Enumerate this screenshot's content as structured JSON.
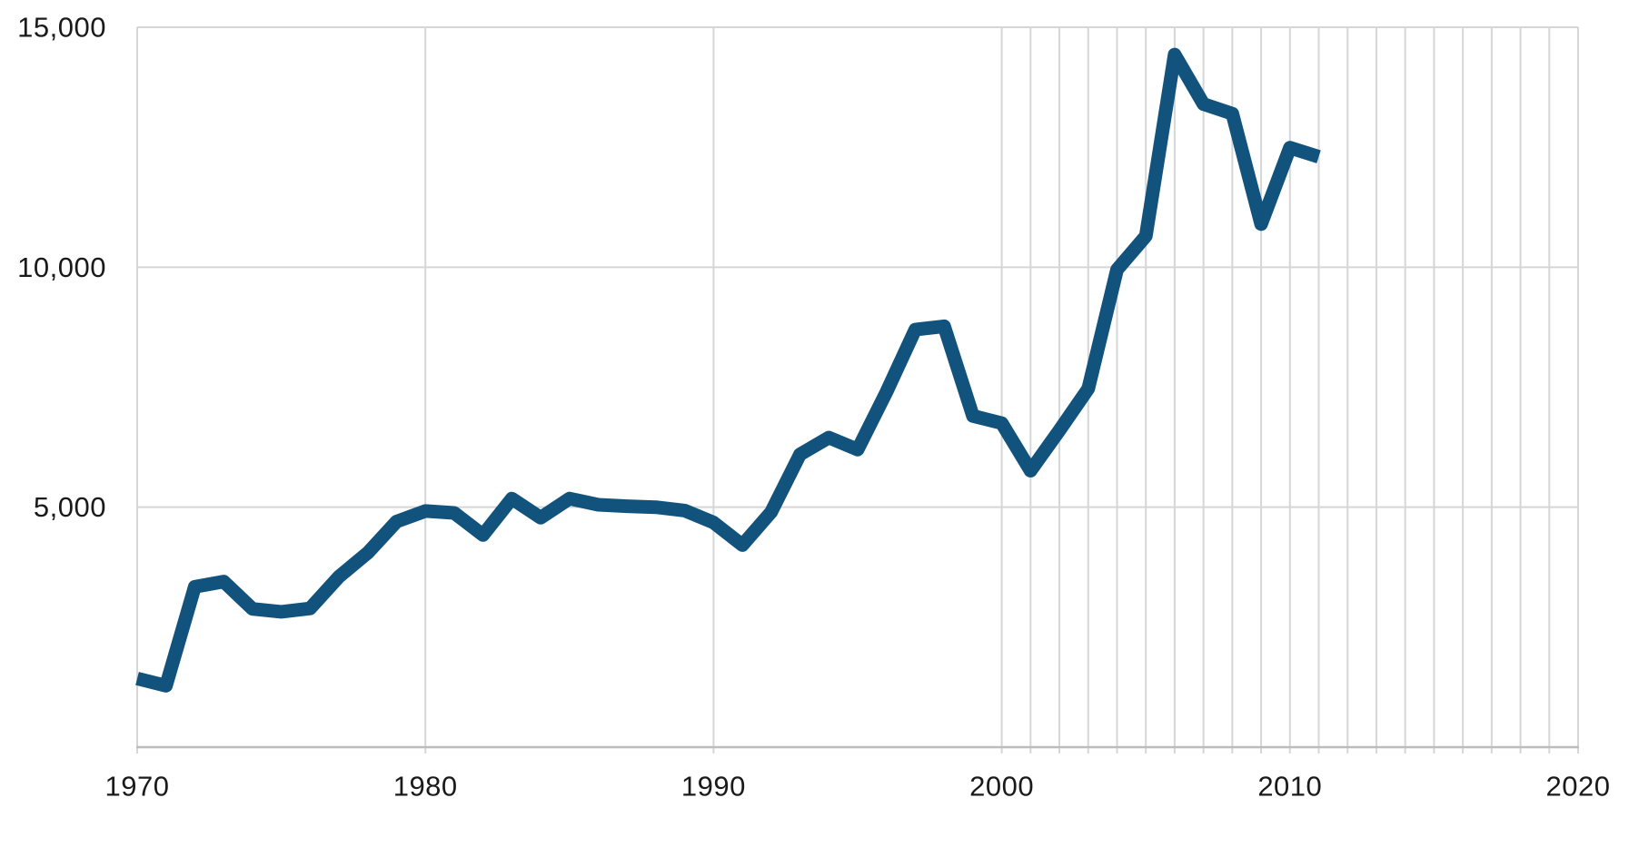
{
  "chart_data": {
    "type": "line",
    "title": "",
    "xlabel": "",
    "ylabel": "",
    "x": [
      1970,
      1971,
      1972,
      1973,
      1974,
      1975,
      1976,
      1977,
      1978,
      1979,
      1980,
      1981,
      1982,
      1983,
      1984,
      1985,
      1986,
      1987,
      1988,
      1989,
      1990,
      1991,
      1992,
      1993,
      1994,
      1995,
      1996,
      1997,
      1998,
      1999,
      2000,
      2001,
      2002,
      2003,
      2004,
      2005,
      2006,
      2007,
      2008,
      2009,
      2010,
      2011
    ],
    "values": [
      1430,
      1280,
      3340,
      3450,
      2880,
      2820,
      2890,
      3550,
      4050,
      4700,
      4920,
      4880,
      4420,
      5180,
      4780,
      5180,
      5050,
      5020,
      5000,
      4930,
      4680,
      4210,
      4900,
      6100,
      6450,
      6200,
      7400,
      8700,
      8770,
      6900,
      6750,
      5760,
      6600,
      7470,
      9950,
      10650,
      14430,
      13400,
      13200,
      10900,
      12490,
      12300
    ],
    "xlim": [
      1970,
      2020
    ],
    "ylim": [
      0,
      15000
    ],
    "x_ticks": {
      "values": [
        1970,
        1980,
        1990,
        2000,
        2010,
        2020
      ],
      "labels": [
        "1970",
        "1980",
        "1990",
        "2000",
        "2010",
        "2020"
      ]
    },
    "y_ticks": {
      "values": [
        5000,
        10000,
        15000
      ],
      "labels": [
        "5,000",
        "10,000",
        "15,000"
      ]
    },
    "minor_x_gridlines": {
      "from": 2000,
      "to": 2020,
      "step": 1
    },
    "grid": true,
    "legend": false
  },
  "style": {
    "line_color": "#11537D",
    "line_width": 15,
    "gridline_color": "#D6D6D6",
    "axis_color": "#BDBDBD",
    "label_color": "#1A1A1A",
    "background": "#FFFFFF"
  }
}
